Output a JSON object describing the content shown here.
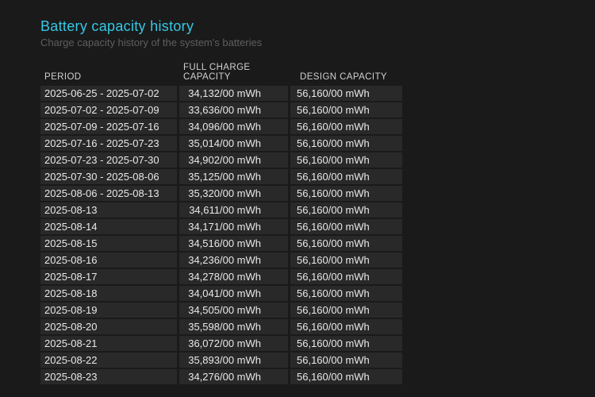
{
  "report": {
    "title": "Battery capacity history",
    "subtitle": "Charge capacity history of the system's batteries"
  },
  "table": {
    "columns": [
      "PERIOD",
      "FULL CHARGE CAPACITY",
      "DESIGN CAPACITY"
    ],
    "rows": [
      {
        "period": "2025-06-25 - 2025-07-02",
        "full": "34,132/00 mWh",
        "design": "56,160/00 mWh"
      },
      {
        "period": "2025-07-02 - 2025-07-09",
        "full": "33,636/00 mWh",
        "design": "56,160/00 mWh"
      },
      {
        "period": "2025-07-09 - 2025-07-16",
        "full": "34,096/00 mWh",
        "design": "56,160/00 mWh"
      },
      {
        "period": "2025-07-16 - 2025-07-23",
        "full": "35,014/00 mWh",
        "design": "56,160/00 mWh"
      },
      {
        "period": "2025-07-23 - 2025-07-30",
        "full": "34,902/00 mWh",
        "design": "56,160/00 mWh"
      },
      {
        "period": "2025-07-30 - 2025-08-06",
        "full": "35,125/00 mWh",
        "design": "56,160/00 mWh"
      },
      {
        "period": "2025-08-06 - 2025-08-13",
        "full": "35,320/00 mWh",
        "design": "56,160/00 mWh"
      },
      {
        "period": "2025-08-13",
        "full": "34,611/00 mWh",
        "design": "56,160/00 mWh"
      },
      {
        "period": "2025-08-14",
        "full": "34,171/00 mWh",
        "design": "56,160/00 mWh"
      },
      {
        "period": "2025-08-15",
        "full": "34,516/00 mWh",
        "design": "56,160/00 mWh"
      },
      {
        "period": "2025-08-16",
        "full": "34,236/00 mWh",
        "design": "56,160/00 mWh"
      },
      {
        "period": "2025-08-17",
        "full": "34,278/00 mWh",
        "design": "56,160/00 mWh"
      },
      {
        "period": "2025-08-18",
        "full": "34,041/00 mWh",
        "design": "56,160/00 mWh"
      },
      {
        "period": "2025-08-19",
        "full": "34,505/00 mWh",
        "design": "56,160/00 mWh"
      },
      {
        "period": "2025-08-20",
        "full": "35,598/00 mWh",
        "design": "56,160/00 mWh"
      },
      {
        "period": "2025-08-21",
        "full": "36,072/00 mWh",
        "design": "56,160/00 mWh"
      },
      {
        "period": "2025-08-22",
        "full": "35,893/00 mWh",
        "design": "56,160/00 mWh"
      },
      {
        "period": "2025-08-23",
        "full": "34,276/00 mWh",
        "design": "56,160/00 mWh"
      }
    ]
  },
  "colors": {
    "background": "#1a1a1a",
    "title": "#35c7e6",
    "subtitle": "#5e5e5e",
    "cell": "#292929"
  }
}
